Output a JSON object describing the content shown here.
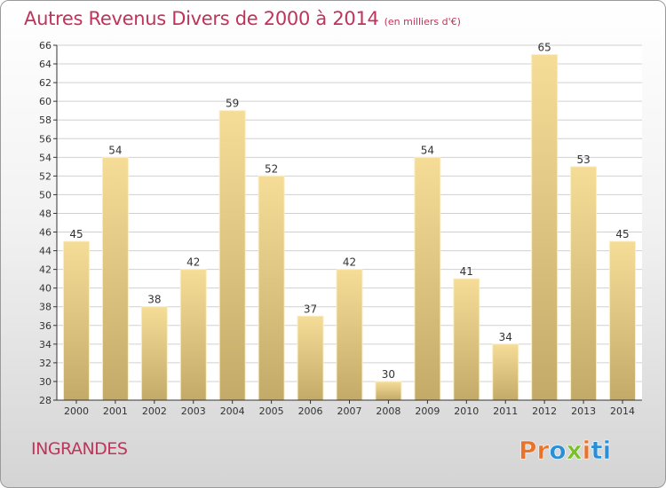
{
  "title": "Autres Revenus Divers de 2000 à 2014",
  "title_unit": "(en milliers d'€)",
  "town": "INGRANDES",
  "brand": "Proxiti",
  "brand_colors": [
    "#e8732a",
    "#e8732a",
    "#2a8fd6",
    "#7bbf2a",
    "#e8732a",
    "#2a8fd6",
    "#2a8fd6"
  ],
  "colors": {
    "title": "#c0335a",
    "bar_light": "#f5dd98",
    "bar_dark": "#c4aa68",
    "grid": "#d0d0d0",
    "axis": "#333333"
  },
  "chart_data": {
    "type": "bar",
    "categories": [
      "2000",
      "2001",
      "2002",
      "2003",
      "2004",
      "2005",
      "2006",
      "2007",
      "2008",
      "2009",
      "2010",
      "2011",
      "2012",
      "2013",
      "2014"
    ],
    "values": [
      45,
      54,
      38,
      42,
      59,
      52,
      37,
      42,
      30,
      54,
      41,
      34,
      65,
      53,
      45
    ],
    "ylim": [
      28,
      66
    ],
    "yticks": [
      28,
      30,
      32,
      34,
      36,
      38,
      40,
      42,
      44,
      46,
      48,
      50,
      52,
      54,
      56,
      58,
      60,
      62,
      64,
      66
    ],
    "grid": true,
    "data_labels": true
  }
}
